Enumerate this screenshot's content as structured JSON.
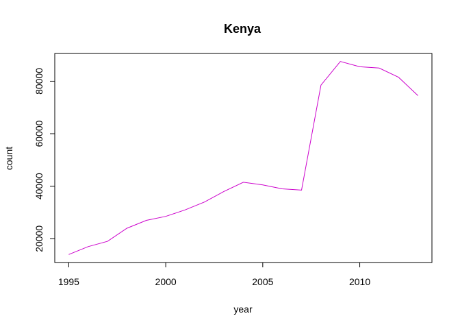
{
  "chart_data": {
    "type": "line",
    "title": "Kenya",
    "xlabel": "year",
    "ylabel": "count",
    "x": [
      1995,
      1996,
      1997,
      1998,
      1999,
      2000,
      2001,
      2002,
      2003,
      2004,
      2005,
      2006,
      2007,
      2008,
      2009,
      2010,
      2011,
      2012,
      2013
    ],
    "series": [
      {
        "color": "#cc00cc",
        "values": [
          14000,
          17000,
          19000,
          24000,
          27000,
          28500,
          31000,
          34000,
          38000,
          41500,
          40500,
          39000,
          38500,
          78500,
          87500,
          85500,
          85000,
          81500,
          74500
        ]
      }
    ],
    "xlim": [
      1994.28,
      2013.72
    ],
    "ylim": [
      10940,
      90560
    ],
    "xticks": [
      1995,
      2000,
      2005,
      2010
    ],
    "yticks": [
      20000,
      40000,
      60000,
      80000
    ],
    "grid": false,
    "legend": "none"
  }
}
